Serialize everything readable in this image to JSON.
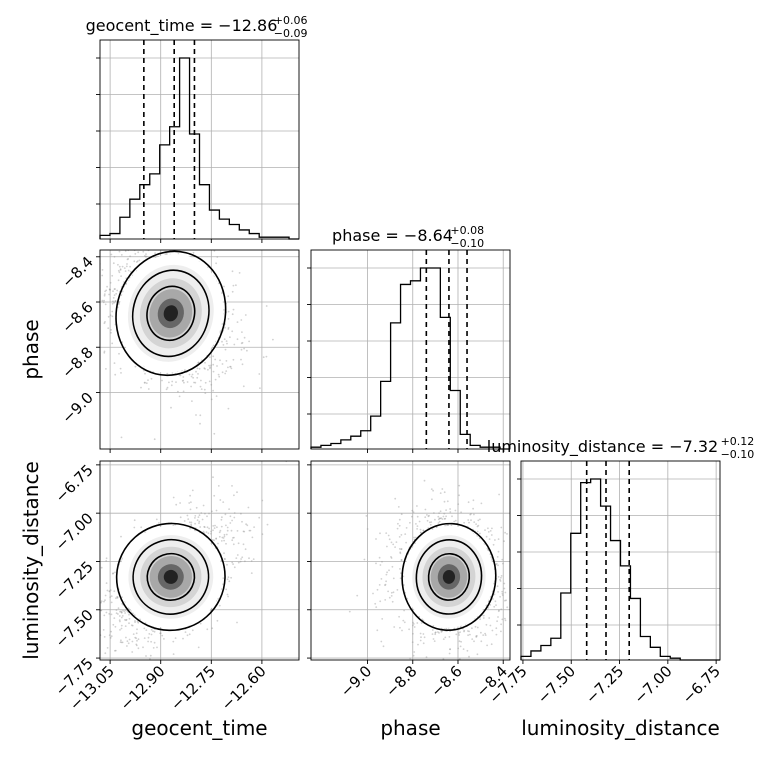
{
  "chart_data": {
    "type": "corner",
    "parameters": [
      "geocent_time",
      "phase",
      "luminosity_distance"
    ],
    "axis_labels": {
      "x": [
        "geocent_time",
        "phase",
        "luminosity_distance"
      ],
      "y": [
        "phase",
        "luminosity_distance"
      ]
    },
    "ranges": {
      "geocent_time": [
        -13.08,
        -12.49
      ],
      "phase": [
        -9.25,
        -8.37
      ],
      "luminosity_distance": [
        -7.76,
        -6.73
      ]
    },
    "x_ticks": {
      "geocent_time": [
        "−13.05",
        "−12.90",
        "−12.75",
        "−12.60"
      ],
      "phase": [
        "−9.0",
        "−8.8",
        "−8.6",
        "−8.4"
      ],
      "luminosity_distance": [
        "−7.75",
        "−7.50",
        "−7.25",
        "−7.00",
        "−6.75"
      ]
    },
    "x_tick_values": {
      "geocent_time": [
        -13.05,
        -12.9,
        -12.75,
        -12.6
      ],
      "phase": [
        -9.0,
        -8.8,
        -8.6,
        -8.4
      ],
      "luminosity_distance": [
        -7.75,
        -7.5,
        -7.25,
        -7.0,
        -6.75
      ]
    },
    "y_ticks": {
      "phase": [
        "−8.4",
        "−8.6",
        "−8.8",
        "−9.0"
      ],
      "luminosity_distance": [
        "−6.75",
        "−7.00",
        "−7.25",
        "−7.50",
        "−7.75"
      ]
    },
    "y_tick_values": {
      "phase": [
        -8.4,
        -8.6,
        -8.8,
        -9.0
      ],
      "luminosity_distance": [
        -6.75,
        -7.0,
        -7.25,
        -7.5,
        -7.75
      ]
    },
    "titles": [
      {
        "param": "geocent_time",
        "label": "geocent_time = −12.86",
        "upper": "+0.06",
        "lower": "−0.09"
      },
      {
        "param": "phase",
        "label": "phase = −8.64",
        "upper": "+0.08",
        "lower": "−0.10"
      },
      {
        "param": "luminosity_distance",
        "label": "luminosity_distance = −7.32",
        "upper": "+0.12",
        "lower": "−0.10"
      }
    ],
    "quantiles": {
      "geocent_time": [
        -12.95,
        -12.86,
        -12.8
      ],
      "phase": [
        -8.74,
        -8.64,
        -8.56
      ],
      "luminosity_distance": [
        -7.42,
        -7.32,
        -7.2
      ]
    },
    "histograms": {
      "geocent_time": {
        "edges_start": -13.08,
        "bin_width": 0.0295,
        "counts": [
          2,
          3,
          12,
          22,
          30,
          36,
          52,
          62,
          100,
          58,
          30,
          16,
          11,
          8,
          5,
          3,
          1,
          1,
          1,
          0
        ]
      },
      "phase": {
        "edges_start": -9.25,
        "bin_width": 0.044,
        "counts": [
          1,
          2,
          3,
          5,
          7,
          10,
          18,
          37,
          69,
          90,
          92,
          99,
          99,
          72,
          32,
          8,
          2,
          1,
          1,
          0
        ]
      },
      "luminosity_distance": {
        "edges_start": -7.76,
        "bin_width": 0.0515,
        "counts": [
          2,
          5,
          8,
          12,
          37,
          70,
          98,
          100,
          85,
          66,
          52,
          34,
          13,
          7,
          2,
          1,
          0,
          0,
          0,
          0
        ]
      }
    },
    "joint_2d": [
      {
        "x": "geocent_time",
        "y": "phase",
        "mean": [
          -12.87,
          -8.65
        ],
        "sd": [
          0.07,
          0.12
        ],
        "corr": -0.35
      },
      {
        "x": "geocent_time",
        "y": "luminosity_distance",
        "mean": [
          -12.87,
          -7.33
        ],
        "sd": [
          0.07,
          0.12
        ],
        "corr": 0.5
      },
      {
        "x": "phase",
        "y": "luminosity_distance",
        "mean": [
          -8.64,
          -7.33
        ],
        "sd": [
          0.09,
          0.12
        ],
        "corr": -0.1
      }
    ],
    "grid": true
  }
}
